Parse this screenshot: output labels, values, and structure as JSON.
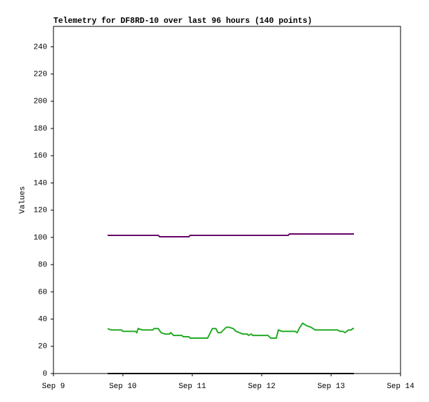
{
  "chart_data": {
    "type": "line",
    "title": "Telemetry for DF8RD-10 over last 96 hours (140 points)",
    "y_label": "Values",
    "xlim": [
      9,
      14
    ],
    "xticks": [
      {
        "value": 9,
        "label": "Sep 9"
      },
      {
        "value": 10,
        "label": "Sep 10"
      },
      {
        "value": 11,
        "label": "Sep 11"
      },
      {
        "value": 12,
        "label": "Sep 12"
      },
      {
        "value": 13,
        "label": "Sep 13"
      },
      {
        "value": 14,
        "label": "Sep 14"
      }
    ],
    "ylim": [
      0,
      255
    ],
    "yticks": [
      0,
      20,
      40,
      60,
      80,
      100,
      120,
      140,
      160,
      180,
      200,
      220,
      240
    ],
    "grid": false,
    "series": [
      {
        "color": "#660066",
        "x": [
          9.78,
          10.51,
          10.53,
          10.95,
          10.97,
          12.38,
          12.4,
          13.33
        ],
        "values": [
          101.5,
          101.5,
          100.5,
          100.5,
          101.5,
          101.5,
          102.5,
          102.5
        ]
      },
      {
        "color": "#22aa22",
        "x": [
          9.78,
          9.83,
          9.98,
          10.0,
          10.18,
          10.2,
          10.22,
          10.28,
          10.43,
          10.45,
          10.51,
          10.55,
          10.61,
          10.67,
          10.69,
          10.73,
          10.85,
          10.87,
          10.95,
          10.97,
          11.22,
          11.29,
          11.34,
          11.37,
          11.41,
          11.49,
          11.53,
          11.59,
          11.63,
          11.68,
          11.73,
          11.79,
          11.81,
          11.85,
          11.87,
          12.09,
          12.13,
          12.21,
          12.24,
          12.29,
          12.48,
          12.51,
          12.55,
          12.59,
          12.65,
          12.71,
          12.74,
          12.77,
          13.09,
          13.13,
          13.17,
          13.2,
          13.25,
          13.29,
          13.31,
          13.33
        ],
        "values": [
          33,
          32,
          32,
          31,
          31,
          30,
          33,
          32,
          32,
          33,
          33,
          30,
          29,
          29,
          30,
          28,
          28,
          27,
          27,
          26,
          26,
          33,
          33,
          30,
          30,
          34,
          34,
          33,
          31,
          30,
          29,
          29,
          28,
          29,
          28,
          28,
          26,
          26,
          32,
          31,
          31,
          30,
          34,
          37,
          35,
          34,
          33,
          32,
          32,
          31,
          31,
          30,
          32,
          32,
          33,
          33
        ]
      },
      {
        "color": "#000000",
        "x": [
          9.78,
          13.33
        ],
        "values": [
          0,
          0
        ]
      }
    ]
  }
}
